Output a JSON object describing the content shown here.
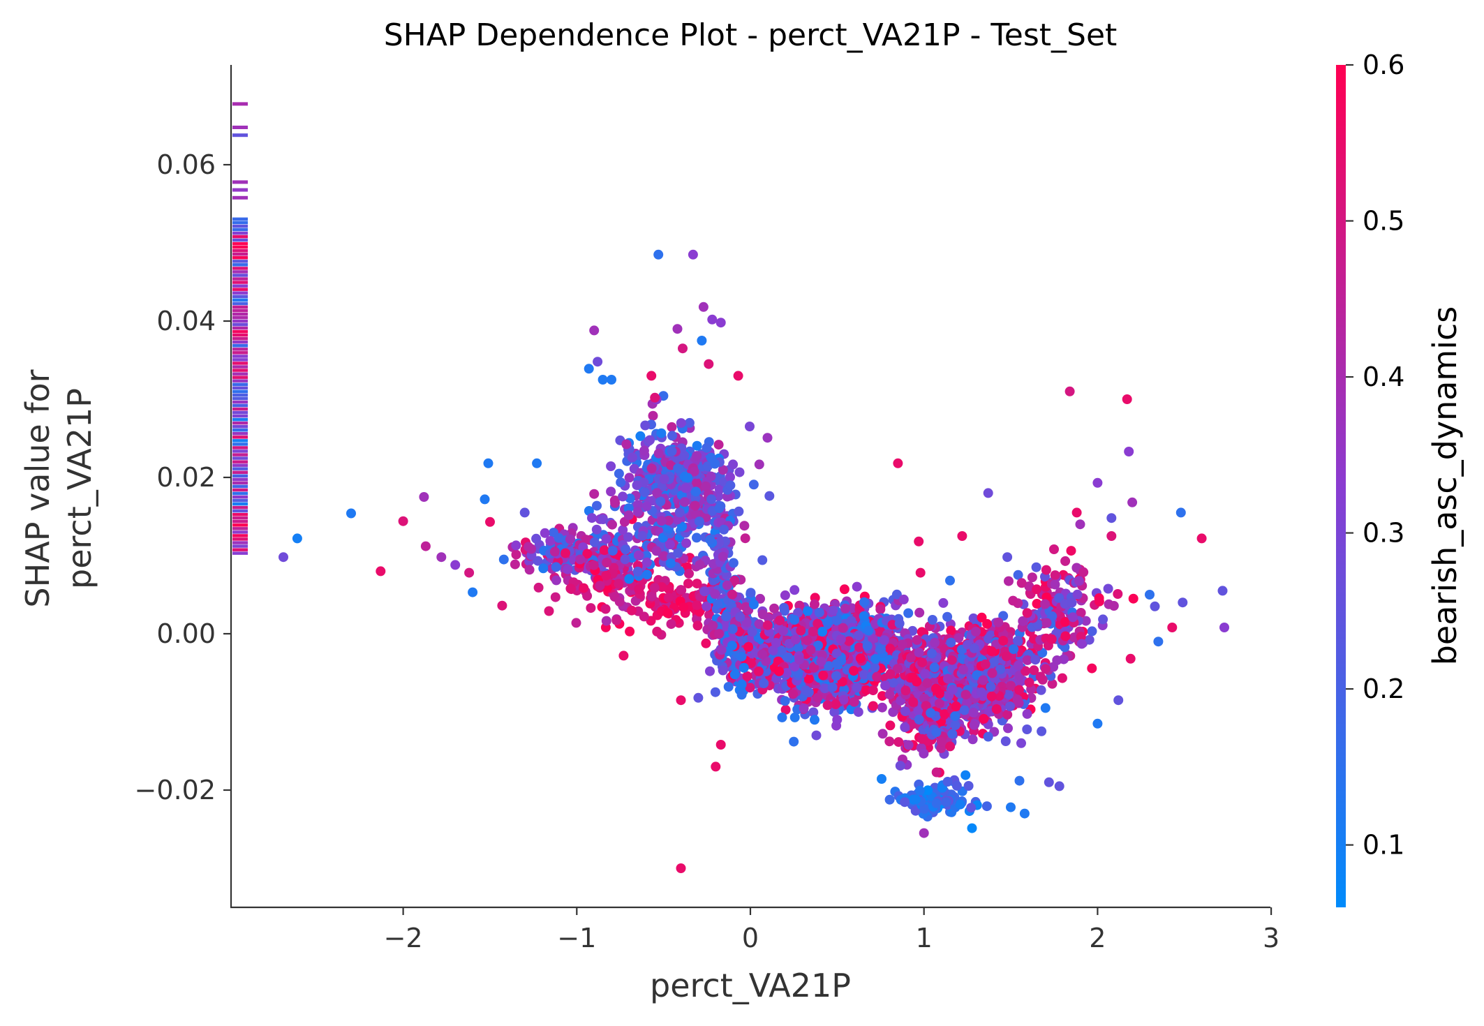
{
  "chart_data": {
    "type": "scatter",
    "title": "SHAP Dependence Plot - perct_VA21P - Test_Set",
    "xlabel": "perct_VA21P",
    "ylabel_lines": [
      "SHAP value for",
      "perct_VA21P"
    ],
    "xlim": [
      -2.95,
      3.0
    ],
    "ylim": [
      -0.035,
      0.072
    ],
    "x_ticks": [
      -2,
      -1,
      0,
      1,
      2,
      3
    ],
    "x_tick_labels": [
      "−2",
      "−1",
      "0",
      "1",
      "2",
      "3"
    ],
    "y_ticks": [
      -0.02,
      0.0,
      0.02,
      0.04,
      0.06
    ],
    "y_tick_labels": [
      "−0.02",
      "0.00",
      "0.02",
      "0.04",
      "0.06"
    ],
    "grid": false,
    "colorbar": {
      "label": "bearish_asc_dynamics",
      "range": [
        0.06,
        0.6
      ],
      "ticks": [
        0.1,
        0.2,
        0.3,
        0.4,
        0.5,
        0.6
      ],
      "tick_labels": [
        "0.1",
        "0.2",
        "0.3",
        "0.4",
        "0.5",
        "0.6"
      ],
      "color_low": "#008bfb",
      "color_mid": "#8a3cd1",
      "color_high": "#ff0052"
    },
    "points": [
      {
        "x": -2.69,
        "y": 0.0098,
        "c": 0.28
      },
      {
        "x": -2.61,
        "y": 0.0122,
        "c": 0.1
      },
      {
        "x": -2.3,
        "y": 0.0154,
        "c": 0.12
      },
      {
        "x": -2.13,
        "y": 0.008,
        "c": 0.55
      },
      {
        "x": -2.0,
        "y": 0.0144,
        "c": 0.52
      },
      {
        "x": -1.88,
        "y": 0.0175,
        "c": 0.38
      },
      {
        "x": -1.87,
        "y": 0.0112,
        "c": 0.45
      },
      {
        "x": -1.78,
        "y": 0.0098,
        "c": 0.38
      },
      {
        "x": -1.7,
        "y": 0.0088,
        "c": 0.33
      },
      {
        "x": -1.62,
        "y": 0.0078,
        "c": 0.5
      },
      {
        "x": -1.6,
        "y": 0.0053,
        "c": 0.12
      },
      {
        "x": -1.53,
        "y": 0.0172,
        "c": 0.12
      },
      {
        "x": -1.51,
        "y": 0.0218,
        "c": 0.12
      },
      {
        "x": -1.5,
        "y": 0.0143,
        "c": 0.55
      },
      {
        "x": -1.43,
        "y": 0.0036,
        "c": 0.52
      },
      {
        "x": -1.42,
        "y": 0.0095,
        "c": 0.15
      },
      {
        "x": -1.35,
        "y": 0.0113,
        "c": 0.33
      },
      {
        "x": -1.3,
        "y": 0.0155,
        "c": 0.25
      },
      {
        "x": -1.23,
        "y": 0.0218,
        "c": 0.12
      },
      {
        "x": -1.22,
        "y": 0.0059,
        "c": 0.5
      },
      {
        "x": -1.16,
        "y": 0.0029,
        "c": 0.52
      },
      {
        "x": -0.93,
        "y": 0.0339,
        "c": 0.12
      },
      {
        "x": -0.9,
        "y": 0.0388,
        "c": 0.38
      },
      {
        "x": -0.88,
        "y": 0.0348,
        "c": 0.28
      },
      {
        "x": -0.85,
        "y": 0.0325,
        "c": 0.12
      },
      {
        "x": -0.8,
        "y": 0.0325,
        "c": 0.12
      },
      {
        "x": -0.73,
        "y": -0.0028,
        "c": 0.55
      },
      {
        "x": -0.57,
        "y": 0.033,
        "c": 0.55
      },
      {
        "x": -0.55,
        "y": 0.0302,
        "c": 0.52
      },
      {
        "x": -0.53,
        "y": 0.0485,
        "c": 0.15
      },
      {
        "x": -0.4,
        "y": -0.0085,
        "c": 0.55
      },
      {
        "x": -0.4,
        "y": -0.03,
        "c": 0.55
      },
      {
        "x": -0.39,
        "y": 0.0365,
        "c": 0.5
      },
      {
        "x": -0.42,
        "y": 0.039,
        "c": 0.38
      },
      {
        "x": -0.33,
        "y": 0.0485,
        "c": 0.33
      },
      {
        "x": -0.3,
        "y": -0.0082,
        "c": 0.25
      },
      {
        "x": -0.28,
        "y": 0.0375,
        "c": 0.12
      },
      {
        "x": -0.27,
        "y": 0.0418,
        "c": 0.38
      },
      {
        "x": -0.24,
        "y": 0.0345,
        "c": 0.52
      },
      {
        "x": -0.22,
        "y": 0.0402,
        "c": 0.33
      },
      {
        "x": -0.2,
        "y": -0.017,
        "c": 0.55
      },
      {
        "x": -0.17,
        "y": -0.0142,
        "c": 0.55
      },
      {
        "x": -0.17,
        "y": 0.0398,
        "c": 0.33
      },
      {
        "x": -0.07,
        "y": 0.033,
        "c": 0.55
      },
      {
        "x": -0.05,
        "y": -0.0065,
        "c": 0.12
      },
      {
        "x": -0.05,
        "y": -0.0078,
        "c": 0.15
      },
      {
        "x": 0.25,
        "y": -0.0138,
        "c": 0.15
      },
      {
        "x": 0.38,
        "y": -0.013,
        "c": 0.28
      },
      {
        "x": 0.5,
        "y": -0.011,
        "c": 0.33
      },
      {
        "x": 0.85,
        "y": 0.0218,
        "c": 0.55
      },
      {
        "x": 0.97,
        "y": 0.0118,
        "c": 0.55
      },
      {
        "x": 0.98,
        "y": 0.0078,
        "c": 0.55
      },
      {
        "x": 1.0,
        "y": -0.0255,
        "c": 0.38
      },
      {
        "x": 1.15,
        "y": 0.0068,
        "c": 0.15
      },
      {
        "x": 1.22,
        "y": 0.0125,
        "c": 0.55
      },
      {
        "x": 1.37,
        "y": 0.018,
        "c": 0.28
      },
      {
        "x": 1.48,
        "y": 0.0098,
        "c": 0.25
      },
      {
        "x": 1.5,
        "y": -0.0222,
        "c": 0.12
      },
      {
        "x": 1.55,
        "y": -0.0188,
        "c": 0.15
      },
      {
        "x": 1.56,
        "y": -0.014,
        "c": 0.3
      },
      {
        "x": 1.58,
        "y": -0.023,
        "c": 0.12
      },
      {
        "x": 1.72,
        "y": -0.019,
        "c": 0.25
      },
      {
        "x": 1.7,
        "y": -0.0095,
        "c": 0.12
      },
      {
        "x": 1.78,
        "y": -0.0195,
        "c": 0.25
      },
      {
        "x": 1.84,
        "y": 0.031,
        "c": 0.5
      },
      {
        "x": 1.88,
        "y": 0.0155,
        "c": 0.55
      },
      {
        "x": 1.9,
        "y": 0.014,
        "c": 0.38
      },
      {
        "x": 2.0,
        "y": 0.0193,
        "c": 0.33
      },
      {
        "x": 2.0,
        "y": -0.0115,
        "c": 0.12
      },
      {
        "x": 2.08,
        "y": 0.0125,
        "c": 0.52
      },
      {
        "x": 2.08,
        "y": 0.0148,
        "c": 0.25
      },
      {
        "x": 2.12,
        "y": -0.0085,
        "c": 0.25
      },
      {
        "x": 2.17,
        "y": 0.03,
        "c": 0.55
      },
      {
        "x": 2.18,
        "y": 0.0233,
        "c": 0.33
      },
      {
        "x": 2.2,
        "y": 0.0168,
        "c": 0.38
      },
      {
        "x": 2.19,
        "y": -0.0032,
        "c": 0.55
      },
      {
        "x": 2.3,
        "y": 0.005,
        "c": 0.15
      },
      {
        "x": 2.33,
        "y": 0.0035,
        "c": 0.25
      },
      {
        "x": 2.35,
        "y": -0.001,
        "c": 0.15
      },
      {
        "x": 2.43,
        "y": 0.0008,
        "c": 0.55
      },
      {
        "x": 2.48,
        "y": 0.0155,
        "c": 0.15
      },
      {
        "x": 2.49,
        "y": 0.004,
        "c": 0.25
      },
      {
        "x": 2.6,
        "y": 0.0122,
        "c": 0.55
      },
      {
        "x": 2.72,
        "y": 0.0055,
        "c": 0.25
      },
      {
        "x": 2.73,
        "y": 0.0008,
        "c": 0.33
      }
    ],
    "clusters": [
      {
        "cx": -1.0,
        "cy": 0.0105,
        "sx": 0.17,
        "sy": 0.0018,
        "n": 150,
        "c": [
          0.1,
          0.55
        ]
      },
      {
        "cx": -0.8,
        "cy": 0.0065,
        "sx": 0.13,
        "sy": 0.0022,
        "n": 80,
        "c": [
          0.4,
          0.6
        ]
      },
      {
        "cx": -0.4,
        "cy": 0.0045,
        "sx": 0.15,
        "sy": 0.002,
        "n": 90,
        "c": [
          0.45,
          0.6
        ]
      },
      {
        "cx": -0.6,
        "cy": 0.0105,
        "sx": 0.12,
        "sy": 0.0015,
        "n": 60,
        "c": [
          0.1,
          0.6
        ]
      },
      {
        "cx": -0.43,
        "cy": 0.019,
        "sx": 0.17,
        "sy": 0.0038,
        "n": 420,
        "c": [
          0.1,
          0.45
        ]
      },
      {
        "cx": -0.18,
        "cy": 0.008,
        "sx": 0.04,
        "sy": 0.005,
        "n": 90,
        "c": [
          0.1,
          0.45
        ]
      },
      {
        "cx": -0.08,
        "cy": 0.001,
        "sx": 0.06,
        "sy": 0.0035,
        "n": 130,
        "c": [
          0.1,
          0.5
        ]
      },
      {
        "cx": 0.45,
        "cy": -0.0025,
        "sx": 0.22,
        "sy": 0.0027,
        "n": 1700,
        "c": [
          0.1,
          0.6
        ]
      },
      {
        "cx": 1.05,
        "cy": -0.0075,
        "sx": 0.11,
        "sy": 0.0035,
        "n": 550,
        "c": [
          0.2,
          0.6
        ]
      },
      {
        "cx": 1.35,
        "cy": -0.005,
        "sx": 0.14,
        "sy": 0.003,
        "n": 550,
        "c": [
          0.15,
          0.6
        ]
      },
      {
        "cx": 1.08,
        "cy": -0.021,
        "sx": 0.13,
        "sy": 0.0012,
        "n": 90,
        "c": [
          0.06,
          0.25
        ]
      },
      {
        "cx": 1.75,
        "cy": 0.003,
        "sx": 0.11,
        "sy": 0.0035,
        "n": 120,
        "c": [
          0.15,
          0.6
        ]
      },
      {
        "cx": 1.95,
        "cy": 0.004,
        "sx": 0.2,
        "sy": 0.003,
        "n": 40,
        "c": [
          0.25,
          0.6
        ]
      }
    ],
    "y_margin_histogram": {
      "position": "left-edge",
      "y_range": [
        0.0105,
        0.068
      ],
      "description_values": [
        0.068,
        0.065,
        0.064,
        0.058,
        0.057,
        0.056
      ]
    }
  }
}
